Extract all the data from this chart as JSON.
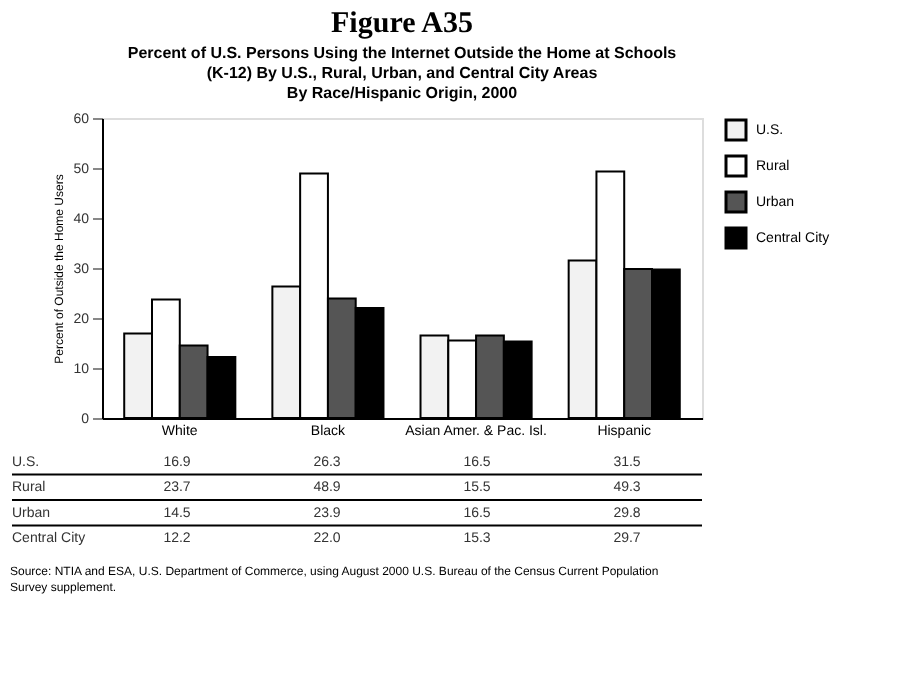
{
  "chart_data": {
    "type": "bar",
    "title": "Figure A35",
    "subtitle": "Percent of U.S. Persons Using the Internet Outside the Home at Schools\n(K-12) By U.S., Rural, Urban, and Central City Areas\nBy Race/Hispanic Origin, 2000",
    "ylabel": "Percent of Outside the Home Users",
    "categories": [
      "White",
      "Black",
      "Asian Amer. & Pac. Isl.",
      "Hispanic"
    ],
    "series": [
      {
        "name": "U.S.",
        "color": "#f2f2f2",
        "values": [
          16.9,
          26.3,
          16.5,
          31.5
        ],
        "value_labels": [
          "16.9",
          "26.3",
          "16.5",
          "31.5"
        ]
      },
      {
        "name": "Rural",
        "color": "#ffffff",
        "values": [
          23.7,
          48.9,
          15.5,
          49.3
        ],
        "value_labels": [
          "23.7",
          "48.9",
          "15.5",
          "49.3"
        ]
      },
      {
        "name": "Urban",
        "color": "#555555",
        "values": [
          14.5,
          23.9,
          16.5,
          29.8
        ],
        "value_labels": [
          "14.5",
          "23.9",
          "16.5",
          "29.8"
        ]
      },
      {
        "name": "Central City",
        "color": "#000000",
        "values": [
          12.2,
          22.0,
          15.3,
          29.7
        ],
        "value_labels": [
          "12.2",
          "22.0",
          "15.3",
          "29.7"
        ]
      }
    ],
    "ylim": [
      0,
      60
    ],
    "yticks": [
      0,
      10,
      20,
      30,
      40,
      50,
      60
    ],
    "grid": false,
    "legend": "top right",
    "annotations": [
      "Source: NTIA and ESA, U.S. Department of Commerce, using August 2000 U.S. Bureau of the Census Current Population Survey supplement."
    ]
  }
}
